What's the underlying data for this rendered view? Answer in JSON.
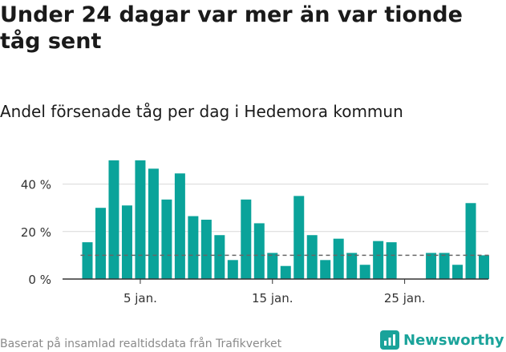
{
  "title": "Under 24 dagar var mer än var tionde tåg sent",
  "subtitle": "Andel försenade tåg per dag i Hedemora kommun",
  "source": "Baserat på insamlad realtidsdata från Trafikverket",
  "brand": {
    "name": "Newsworthy",
    "logo_icon": "bar-chart-logo-icon"
  },
  "colors": {
    "bar": "#0aa39a",
    "grid": "#d9d9d9",
    "reference_line": "#666666",
    "text": "#1a1a1a",
    "muted": "#8a8a8a",
    "brand": "#1aa39a"
  },
  "chart_data": {
    "type": "bar",
    "x_type": "date",
    "x_start_date": "1 jan.",
    "x_tick_labels": [
      {
        "day": 5,
        "label": "5 jan."
      },
      {
        "day": 15,
        "label": "15 jan."
      },
      {
        "day": 25,
        "label": "25 jan."
      }
    ],
    "days": [
      1,
      2,
      3,
      4,
      5,
      6,
      7,
      8,
      9,
      10,
      11,
      12,
      13,
      14,
      15,
      16,
      17,
      18,
      19,
      20,
      21,
      22,
      23,
      24,
      25,
      26,
      27,
      28,
      29,
      30,
      31
    ],
    "values": [
      15.5,
      30,
      50,
      31,
      50,
      46.5,
      33.5,
      44.5,
      26.5,
      25,
      18.5,
      8,
      33.5,
      23.5,
      11,
      5.5,
      35,
      18.5,
      8,
      17,
      11,
      6,
      16,
      15.5,
      null,
      null,
      11,
      11,
      6,
      32,
      10
    ],
    "reference_line": {
      "value": 10,
      "style": "dashed"
    },
    "y_ticks": [
      {
        "value": 0,
        "label": "0 %"
      },
      {
        "value": 20,
        "label": "20 %"
      },
      {
        "value": 40,
        "label": "40 %"
      }
    ],
    "ylim": [
      0,
      50
    ],
    "grid": true,
    "legend": "none"
  }
}
